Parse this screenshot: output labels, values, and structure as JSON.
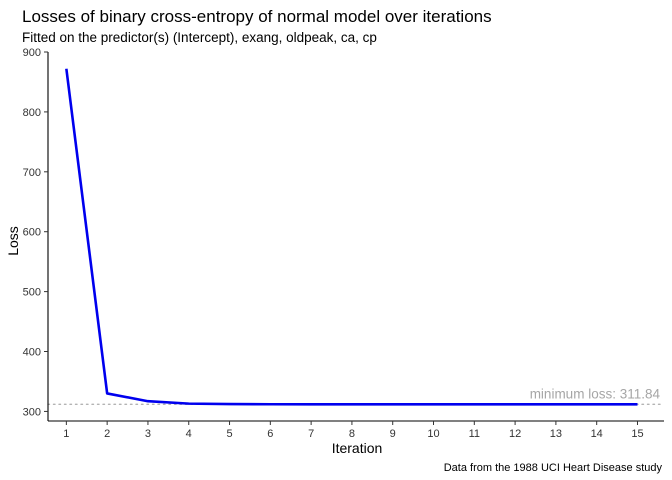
{
  "chart_data": {
    "type": "line",
    "title": "Losses of binary cross-entropy of normal model over iterations",
    "subtitle": "Fitted on the predictor(s) (Intercept), exang, oldpeak, ca, cp",
    "xlabel": "Iteration",
    "ylabel": "Loss",
    "caption": "Data from the 1988 UCI Heart Disease study",
    "x": [
      1,
      2,
      3,
      4,
      5,
      6,
      7,
      8,
      9,
      10,
      11,
      12,
      13,
      14,
      15
    ],
    "series": [
      {
        "values": [
          872,
          330,
          317,
          313,
          312.2,
          311.95,
          311.88,
          311.86,
          311.85,
          311.845,
          311.84,
          311.84,
          311.84,
          311.84,
          311.84
        ],
        "color": "#0000ee"
      }
    ],
    "reference_line": {
      "y": 311.84,
      "style": "dotted",
      "color": "#b3b3b3"
    },
    "annotation": "minimum loss: 311.84",
    "xlim": [
      0.55,
      15.65
    ],
    "ylim": [
      284,
      900
    ],
    "xticks": [
      1,
      2,
      3,
      4,
      5,
      6,
      7,
      8,
      9,
      10,
      11,
      12,
      13,
      14,
      15
    ],
    "yticks": [
      300,
      400,
      500,
      600,
      700,
      800,
      900
    ],
    "grid": false,
    "legend": "none"
  }
}
